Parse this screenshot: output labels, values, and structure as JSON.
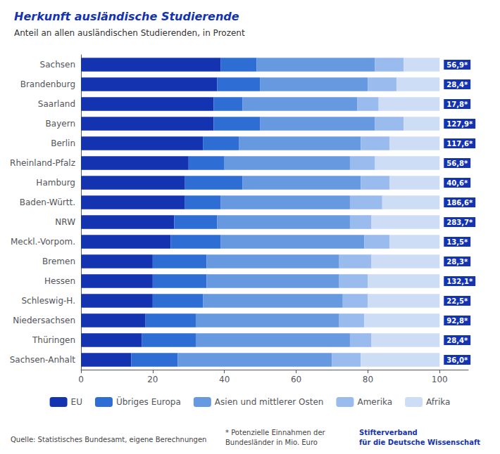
{
  "chart_data": {
    "type": "bar",
    "orientation": "horizontal",
    "stacked": true,
    "title": "Herkunft ausländische Studierende",
    "subtitle": "Anteil an allen ausländischen Studierenden, in Prozent",
    "categories": [
      "Sachsen",
      "Brandenburg",
      "Saarland",
      "Bayern",
      "Berlin",
      "Rheinland-Pfalz",
      "Hamburg",
      "Baden-Württ.",
      "NRW",
      "Meckl.-Vorpom.",
      "Bremen",
      "Hessen",
      "Schleswig-H.",
      "Niedersachsen",
      "Thüringen",
      "Sachsen-Anhalt"
    ],
    "series": [
      {
        "name": "EU",
        "color": "#1433b0",
        "values": [
          39,
          38,
          37,
          37,
          34,
          30,
          29,
          29,
          26,
          25,
          20,
          20,
          20,
          18,
          17,
          14
        ]
      },
      {
        "name": "Übriges Europa",
        "color": "#2e6dd4",
        "values": [
          10,
          12,
          8,
          13,
          10,
          10,
          16,
          10,
          12,
          14,
          15,
          15,
          14,
          14,
          15,
          13
        ]
      },
      {
        "name": "Asien und mittlerer Osten",
        "color": "#6699e0",
        "values": [
          33,
          30,
          32,
          32,
          34,
          35,
          33,
          36,
          37,
          40,
          37,
          37,
          39,
          40,
          43,
          43
        ]
      },
      {
        "name": "Amerika",
        "color": "#99bbee",
        "values": [
          8,
          8,
          6,
          8,
          8,
          7,
          8,
          9,
          6,
          7,
          9,
          8,
          7,
          7,
          6,
          8
        ]
      },
      {
        "name": "Afrika",
        "color": "#ccddf5",
        "values": [
          10,
          12,
          17,
          10,
          14,
          18,
          14,
          16,
          19,
          14,
          19,
          20,
          20,
          21,
          19,
          22
        ]
      }
    ],
    "right_labels": [
      "56,9*",
      "28,4*",
      "17,8*",
      "127,9*",
      "117,6*",
      "56,8*",
      "40,6*",
      "186,6*",
      "283,7*",
      "13,5*",
      "28,3*",
      "132,1*",
      "22,5*",
      "92,8*",
      "28,4*",
      "36,0*"
    ],
    "annotations": [
      "Quelle: Statistisches Bundesamt, eigene Berechnungen",
      "* Potenzielle Einnahmen der\nBundesländer in Mio. Euro",
      "Stifterverband\nfür die Deutsche Wissenschaft"
    ],
    "xlim": [
      0,
      108
    ],
    "xticks": [
      0,
      20,
      40,
      60,
      80,
      100
    ],
    "grid": false,
    "legend": "bottom"
  }
}
